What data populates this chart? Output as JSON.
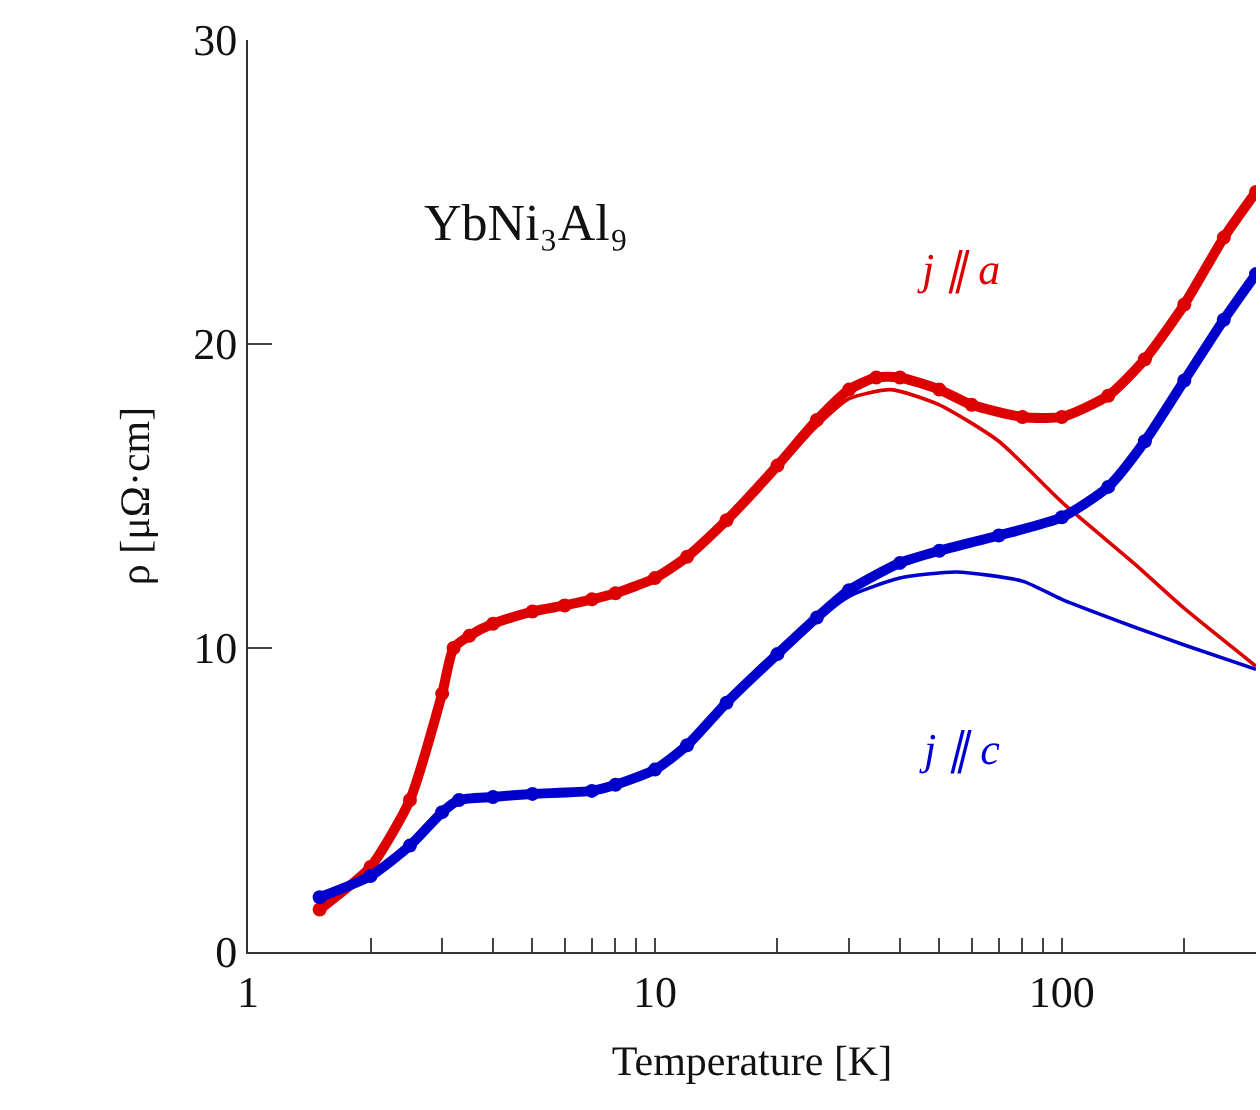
{
  "chart_data": {
    "type": "line",
    "title": "YbNi₃Al₉",
    "xlabel": "Temperature [K]",
    "ylabel": "ρ [μΩ·cm]",
    "log": "x",
    "xlim": [
      1,
      300
    ],
    "xticks": [
      1,
      {
        "value": 2,
        "label": null
      },
      {
        "value": 3,
        "label": null
      },
      {
        "value": 4,
        "label": null
      },
      {
        "value": 5,
        "label": null
      },
      {
        "value": 6,
        "label": null
      },
      {
        "value": 7,
        "label": null
      },
      {
        "value": 8,
        "label": null
      },
      {
        "value": 9,
        "label": null
      },
      10,
      {
        "value": 20,
        "label": null
      },
      {
        "value": 30,
        "label": null
      },
      {
        "value": 40,
        "label": null
      },
      {
        "value": 50,
        "label": null
      },
      {
        "value": 60,
        "label": null
      },
      {
        "value": 70,
        "label": null
      },
      {
        "value": 80,
        "label": null
      },
      {
        "value": 90,
        "label": null
      },
      100,
      {
        "value": 200,
        "label": null
      }
    ],
    "ylim": [
      0,
      30
    ],
    "yticks": [
      0,
      10,
      20,
      30
    ],
    "legend": false,
    "series": [
      {
        "name": "j ∥ a",
        "color": "#dd0000",
        "marker": "circle",
        "x": [
          1.5,
          2,
          2.5,
          3,
          3.2,
          3.5,
          4,
          5,
          6,
          7,
          8,
          10,
          12,
          15,
          20,
          25,
          30,
          35,
          40,
          50,
          60,
          80,
          100,
          130,
          160,
          200,
          250,
          300
        ],
        "values": [
          1.4,
          2.8,
          5,
          8.5,
          10,
          10.4,
          10.8,
          11.2,
          11.4,
          11.6,
          11.8,
          12.3,
          13,
          14.2,
          16,
          17.5,
          18.5,
          18.9,
          18.9,
          18.5,
          18,
          17.6,
          17.6,
          18.3,
          19.5,
          21.3,
          23.5,
          25
        ]
      },
      {
        "color": "#dd0000",
        "marker": "none",
        "x": [
          15,
          20,
          25,
          30,
          38,
          50,
          70,
          100,
          150,
          200,
          300
        ],
        "values": [
          14.2,
          15.9,
          17.3,
          18.2,
          18.5,
          18,
          16.8,
          14.8,
          12.8,
          11.3,
          9.4
        ]
      },
      {
        "name": "j ∥ c",
        "color": "#0000cc",
        "marker": "circle",
        "x": [
          1.5,
          2,
          2.5,
          3,
          3.3,
          4,
          5,
          7,
          8,
          10,
          12,
          15,
          20,
          25,
          30,
          40,
          50,
          70,
          100,
          130,
          160,
          200,
          250,
          300
        ],
        "values": [
          1.8,
          2.5,
          3.5,
          4.6,
          5,
          5.1,
          5.2,
          5.3,
          5.5,
          6,
          6.8,
          8.2,
          9.8,
          11,
          11.9,
          12.8,
          13.2,
          13.7,
          14.3,
          15.3,
          16.8,
          18.8,
          20.8,
          22.3
        ]
      },
      {
        "color": "#0000cc",
        "marker": "none",
        "x": [
          15,
          20,
          25,
          30,
          40,
          55,
          80,
          100,
          150,
          200,
          300
        ],
        "values": [
          8.1,
          9.7,
          10.9,
          11.7,
          12.3,
          12.5,
          12.2,
          11.6,
          10.7,
          10.1,
          9.3
        ]
      }
    ]
  }
}
